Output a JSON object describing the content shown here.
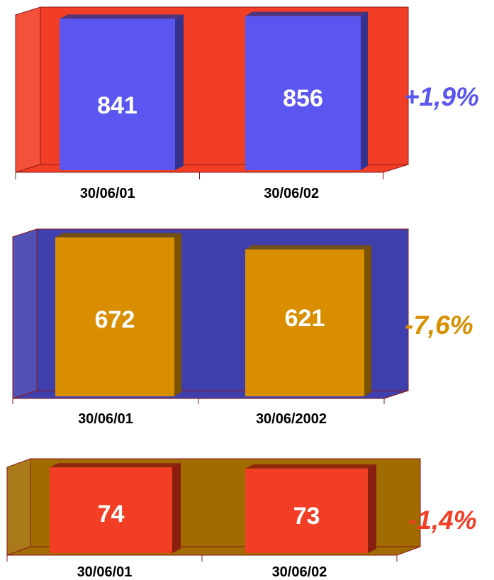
{
  "chart_data": [
    {
      "type": "bar",
      "categories": [
        "30/06/01",
        "30/06/02"
      ],
      "values": [
        841,
        856
      ],
      "data_labels": [
        "841",
        "856"
      ],
      "change_label": "+1,9%",
      "colors": {
        "background": "#f23e24",
        "bar": "#5b56ef",
        "bar_shade": "#34328c",
        "change_label": "#5b56ef"
      }
    },
    {
      "type": "bar",
      "categories": [
        "30/06/01",
        "30/06/2002"
      ],
      "values": [
        672,
        621
      ],
      "data_labels": [
        "672",
        "621"
      ],
      "change_label": "-7,6%",
      "colors": {
        "background": "#3f3fae",
        "bar": "#d98e00",
        "bar_shade": "#7a5200",
        "change_label": "#d98e00"
      }
    },
    {
      "type": "bar",
      "categories": [
        "30/06/01",
        "30/06/02"
      ],
      "values": [
        74,
        73
      ],
      "data_labels": [
        "74",
        "73"
      ],
      "change_label": "-1,4%",
      "colors": {
        "background": "#a06c00",
        "bar": "#f23e24",
        "bar_shade": "#8a1e10",
        "change_label": "#f23e24"
      }
    }
  ]
}
